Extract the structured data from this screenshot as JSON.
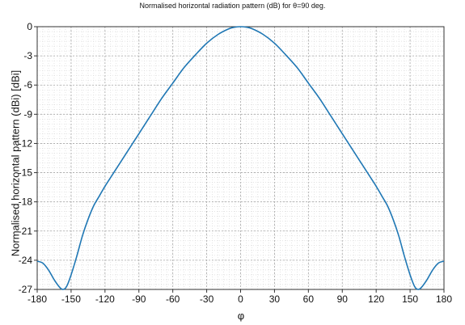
{
  "chart_data": {
    "type": "line",
    "title": "Normalised horizontal radiation pattern (dB) for θ=90 deg.",
    "xlabel": "φ",
    "ylabel": "Normalised horizontal pattern (dBi) [dBi]",
    "xlim": [
      -180,
      180
    ],
    "ylim": [
      -27,
      0
    ],
    "xticks": [
      -180,
      -150,
      -120,
      -90,
      -60,
      -30,
      0,
      30,
      60,
      90,
      120,
      150,
      180
    ],
    "yticks": [
      0,
      -3,
      -6,
      -9,
      -12,
      -15,
      -18,
      -21,
      -24,
      -27
    ],
    "grid": true,
    "line_color": "#1f77b4",
    "series": [
      {
        "x": [
          -180,
          -175,
          -170,
          -165,
          -160,
          -157,
          -154,
          -150,
          -145,
          -140,
          -135,
          -130,
          -125,
          -120,
          -110,
          -100,
          -90,
          -80,
          -70,
          -60,
          -50,
          -40,
          -30,
          -20,
          -10,
          -5,
          0,
          5,
          10,
          20,
          30,
          40,
          50,
          60,
          70,
          80,
          90,
          100,
          110,
          120,
          125,
          130,
          135,
          140,
          145,
          150,
          154,
          157,
          160,
          165,
          170,
          175,
          180
        ],
        "y": [
          -24.1,
          -24.3,
          -25.0,
          -26.0,
          -26.8,
          -27.0,
          -26.7,
          -25.5,
          -23.6,
          -21.5,
          -19.8,
          -18.4,
          -17.4,
          -16.4,
          -14.6,
          -12.8,
          -11.0,
          -9.2,
          -7.4,
          -5.8,
          -4.2,
          -2.9,
          -1.7,
          -0.8,
          -0.2,
          -0.05,
          0.0,
          -0.05,
          -0.2,
          -0.8,
          -1.7,
          -2.9,
          -4.2,
          -5.8,
          -7.4,
          -9.2,
          -11.0,
          -12.8,
          -14.6,
          -16.4,
          -17.4,
          -18.4,
          -19.8,
          -21.5,
          -23.6,
          -25.5,
          -26.7,
          -27.0,
          -26.8,
          -26.0,
          -25.0,
          -24.3,
          -24.1
        ]
      }
    ]
  }
}
